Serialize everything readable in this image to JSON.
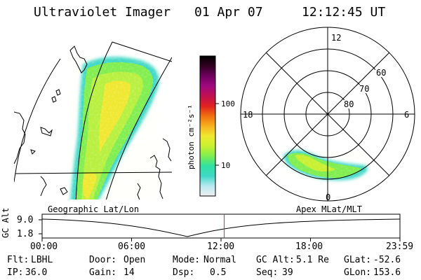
{
  "header": {
    "instrument": "Ultraviolet Imager",
    "date": "01 Apr 07",
    "time": "12:12:45 UT"
  },
  "geo_panel": {
    "label": "Geographic Lat/Lon",
    "coastline_color": "#000000"
  },
  "colorbar": {
    "unit_label": "photon cm⁻²s⁻¹",
    "ticks": [
      "100",
      "10"
    ],
    "colors": [
      "#f0f0f0",
      "#b8e8f0",
      "#40d8c8",
      "#30e0a0",
      "#80ee50",
      "#c8f030",
      "#f0e830",
      "#f8b020",
      "#f07010",
      "#e02020",
      "#c01050",
      "#a00880",
      "#700060",
      "#300020",
      "#000000"
    ]
  },
  "polar_panel": {
    "label": "Apex MLat/MLT",
    "mlt_labels": {
      "top": "12",
      "left": "18",
      "right": "6",
      "bottom": "0"
    },
    "lat_labels": [
      "60",
      "70",
      "80"
    ]
  },
  "gc_alt_plot": {
    "ylabel": "GC Alt",
    "ytick_high": "9.0",
    "ytick_low": "1.8",
    "xticks": [
      "00:00",
      "06:00",
      "12:00",
      "18:00",
      "23:59"
    ],
    "current_time_hours": 12.21,
    "marker_color": "#d03020"
  },
  "status": {
    "flt_label": "Flt:",
    "flt_value": "LBHL",
    "door_label": "Door:",
    "door_value": "Open",
    "mode_label": "Mode:",
    "mode_value": "Normal",
    "gcalt_label": "GC Alt:",
    "gcalt_value": "5.1 Re",
    "glat_label": "GLat:",
    "glat_value": "-52.6",
    "ip_label": "IP:",
    "ip_value": "36.0",
    "gain_label": "Gain:",
    "gain_value": "14",
    "dsp_label": "Dsp:",
    "dsp_value": "0.5",
    "seq_label": "Seq:",
    "seq_value": "39",
    "glon_label": "GLon:",
    "glon_value": "153.6"
  }
}
